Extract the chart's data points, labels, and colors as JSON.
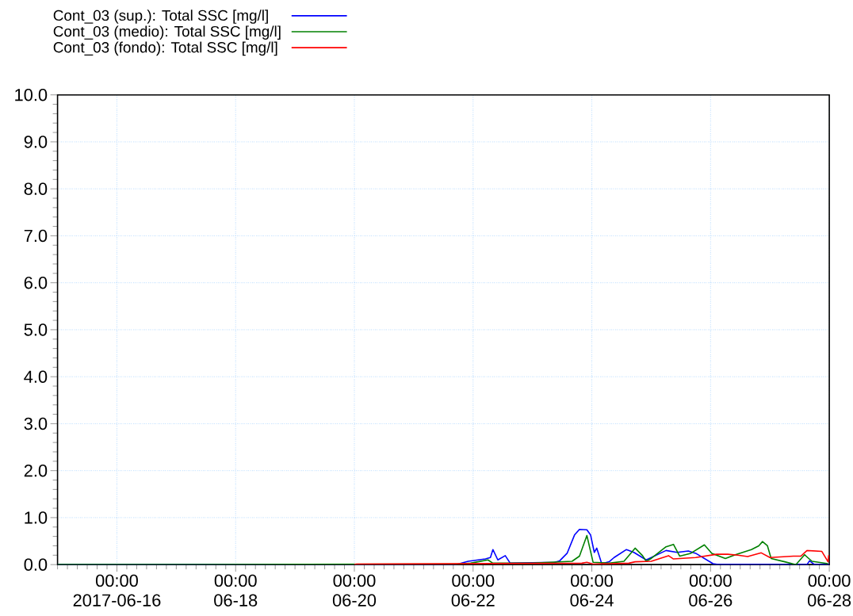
{
  "chart_data": {
    "type": "line",
    "x": [
      "2017-06-15T00:00",
      "2017-06-21T17:00",
      "2017-06-21T22:00",
      "2017-06-22T05:00",
      "2017-06-22T07:00",
      "2017-06-22T08:00",
      "2017-06-22T10:00",
      "2017-06-22T13:00",
      "2017-06-22T15:00",
      "2017-06-23T09:00",
      "2017-06-23T11:00",
      "2017-06-23T14:00",
      "2017-06-23T17:00",
      "2017-06-23T19:00",
      "2017-06-23T22:00",
      "2017-06-23T23:30",
      "2017-06-24T01:00",
      "2017-06-24T02:00",
      "2017-06-24T04:00",
      "2017-06-24T07:00",
      "2017-06-24T09:00",
      "2017-06-24T14:00",
      "2017-06-24T17:00",
      "2017-06-24T22:00",
      "2017-06-25T06:00",
      "2017-06-25T10:30",
      "2017-06-25T15:00",
      "2017-06-25T18:00",
      "2017-06-26T01:00",
      "2017-06-26T03:00",
      "2017-06-27T15:00",
      "2017-06-27T16:00",
      "2017-06-27T18:00",
      "2017-06-28T00:00"
    ],
    "series": [
      {
        "name": "Cont_03 (sup.): Total SSC    [mg/l]",
        "color": "#0000ff",
        "values": [
          0,
          0,
          0.07,
          0.12,
          0.15,
          0.32,
          0.1,
          0.19,
          0.03,
          0.05,
          0.08,
          0.24,
          0.63,
          0.75,
          0.74,
          0.63,
          0.26,
          0.35,
          0.02,
          0.06,
          0.15,
          0.32,
          0.26,
          0.1,
          0.3,
          0.26,
          0.29,
          0.24,
          0.02,
          0,
          0,
          0.08,
          0,
          0
        ]
      },
      {
        "name": "Cont_03 (medio): Total SSC [mg/l]",
        "color": "#008000",
        "x": [
          "2017-06-15T00:00",
          "2017-06-21T18:00",
          "2017-06-21T23:00",
          "2017-06-22T06:00",
          "2017-06-22T08:00",
          "2017-06-23T00:00",
          "2017-06-23T16:00",
          "2017-06-23T19:00",
          "2017-06-23T22:00",
          "2017-06-24T00:30",
          "2017-06-24T07:00",
          "2017-06-24T13:00",
          "2017-06-24T17:30",
          "2017-06-24T20:30",
          "2017-06-24T22:00",
          "2017-06-25T00:00",
          "2017-06-25T06:00",
          "2017-06-25T09:00",
          "2017-06-25T11:30",
          "2017-06-25T16:00",
          "2017-06-25T21:30",
          "2017-06-26T00:30",
          "2017-06-26T06:00",
          "2017-06-26T10:00",
          "2017-06-26T16:30",
          "2017-06-26T19:30",
          "2017-06-26T21:00",
          "2017-06-26T23:00",
          "2017-06-27T00:30",
          "2017-06-27T06:00",
          "2017-06-27T10:30",
          "2017-06-27T14:00",
          "2017-06-27T17:00",
          "2017-06-27T23:30"
        ],
        "values": [
          0,
          0.01,
          0.03,
          0.1,
          0.03,
          0.03,
          0.07,
          0.18,
          0.62,
          0.05,
          0.03,
          0.07,
          0.35,
          0.19,
          0.07,
          0.13,
          0.38,
          0.43,
          0.18,
          0.24,
          0.42,
          0.24,
          0.13,
          0.21,
          0.32,
          0.4,
          0.49,
          0.4,
          0.13,
          0.06,
          0,
          0.21,
          0.07,
          0.02
        ]
      },
      {
        "name": "Cont_03 (fondo): Total SSC  [mg/l]",
        "color": "#ff0000",
        "x": [
          "2017-06-20T00:00",
          "2017-06-20T01:00",
          "2017-06-23T20:00",
          "2017-06-23T22:00",
          "2017-06-24T00:30",
          "2017-06-24T15:00",
          "2017-06-24T17:30",
          "2017-06-25T00:00",
          "2017-06-25T07:00",
          "2017-06-25T09:00",
          "2017-06-25T18:00",
          "2017-06-26T02:30",
          "2017-06-26T07:00",
          "2017-06-26T11:00",
          "2017-06-26T15:00",
          "2017-06-26T20:30",
          "2017-06-27T00:00",
          "2017-06-27T09:30",
          "2017-06-27T12:30",
          "2017-06-27T15:00",
          "2017-06-27T21:00",
          "2017-06-27T23:30",
          "2017-06-27T23:45"
        ],
        "values": [
          0,
          0.01,
          0.03,
          0.05,
          0.01,
          0.03,
          0.06,
          0.07,
          0.19,
          0.12,
          0.15,
          0.22,
          0.22,
          0.2,
          0.17,
          0.25,
          0.15,
          0.18,
          0.18,
          0.3,
          0.28,
          0.06,
          0.2
        ]
      }
    ],
    "xlim": [
      "2017-06-15T00:00",
      "2017-06-28T00:00"
    ],
    "xticks": [
      {
        "value": "2017-06-16T00:00",
        "label": "00:00 2017-06-16"
      },
      {
        "value": "2017-06-18T00:00",
        "label": "00:00 06-18"
      },
      {
        "value": "2017-06-20T00:00",
        "label": "00:00 06-20"
      },
      {
        "value": "2017-06-22T00:00",
        "label": "00:00 06-22"
      },
      {
        "value": "2017-06-24T00:00",
        "label": "00:00 06-24"
      },
      {
        "value": "2017-06-26T00:00",
        "label": "00:00 06-26"
      },
      {
        "value": "2017-06-28T00:00",
        "label": "00:00 06-28"
      }
    ],
    "ylim": [
      0,
      10
    ],
    "yticks": [
      {
        "value": 0,
        "label": "0.0"
      },
      {
        "value": 1,
        "label": "1.0"
      },
      {
        "value": 2,
        "label": "2.0"
      },
      {
        "value": 3,
        "label": "3.0"
      },
      {
        "value": 4,
        "label": "4.0"
      },
      {
        "value": 5,
        "label": "5.0"
      },
      {
        "value": 6,
        "label": "6.0"
      },
      {
        "value": 7,
        "label": "7.0"
      },
      {
        "value": 8,
        "label": "8.0"
      },
      {
        "value": 9,
        "label": "9.0"
      },
      {
        "value": 10,
        "label": "10.0"
      }
    ],
    "grid": true,
    "legend": "top left",
    "marker": "none",
    "line_style": "solid"
  }
}
